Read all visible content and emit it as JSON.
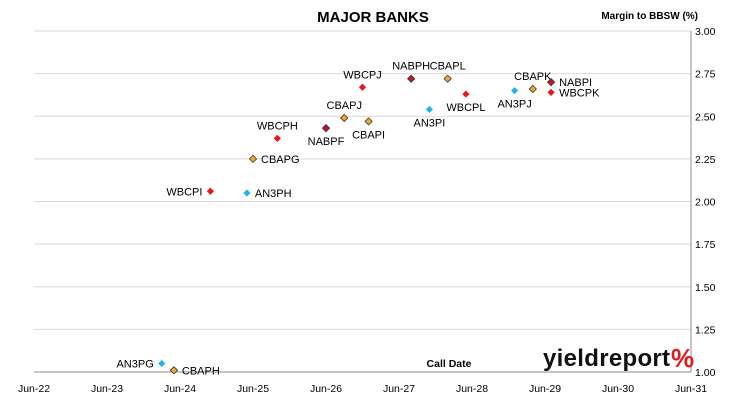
{
  "chart_data": {
    "type": "scatter",
    "title": "MAJOR BANKS",
    "ylabel": "Margin to BBSW (%)",
    "xlabel": "Call Date",
    "xlim": [
      "2022-06",
      "2031-06"
    ],
    "ylim": [
      1.0,
      3.0
    ],
    "y_ticks": [
      "1.00",
      "1.25",
      "1.50",
      "1.75",
      "2.00",
      "2.25",
      "2.50",
      "2.75",
      "3.00"
    ],
    "x_ticks": [
      "Jun-22",
      "Jun-23",
      "Jun-24",
      "Jun-25",
      "Jun-26",
      "Jun-27",
      "Jun-28",
      "Jun-29",
      "Jun-30",
      "Jun-31"
    ],
    "grid": "horizontal",
    "y_axis_side": "right",
    "colors": {
      "red": "#e31a1c",
      "orange": "#f0a830",
      "darkred": "#c0182a",
      "cyan": "#1fb5e8",
      "outline": "#333333"
    },
    "points": [
      {
        "label": "AN3PG",
        "date": "2024-03",
        "y": 1.05,
        "color": "cyan",
        "label_pos": "left"
      },
      {
        "label": "CBAPH",
        "date": "2024-05",
        "y": 1.01,
        "color": "orange",
        "label_pos": "right"
      },
      {
        "label": "WBCPI",
        "date": "2024-11",
        "y": 2.06,
        "color": "red",
        "label_pos": "left"
      },
      {
        "label": "AN3PH",
        "date": "2025-05",
        "y": 2.05,
        "color": "cyan",
        "label_pos": "right"
      },
      {
        "label": "CBAPG",
        "date": "2025-06",
        "y": 2.25,
        "color": "orange",
        "label_pos": "right"
      },
      {
        "label": "WBCPH",
        "date": "2025-10",
        "y": 2.37,
        "color": "red",
        "label_pos": "above"
      },
      {
        "label": "NABPF",
        "date": "2026-06",
        "y": 2.43,
        "color": "darkred",
        "label_pos": "below"
      },
      {
        "label": "CBAPJ",
        "date": "2026-09",
        "y": 2.49,
        "color": "orange",
        "label_pos": "above"
      },
      {
        "label": "WBCPJ",
        "date": "2026-12",
        "y": 2.67,
        "color": "red",
        "label_pos": "above"
      },
      {
        "label": "CBAPI",
        "date": "2027-01",
        "y": 2.47,
        "color": "orange",
        "label_pos": "below"
      },
      {
        "label": "NABPH",
        "date": "2027-08",
        "y": 2.72,
        "color": "darkred",
        "label_pos": "above"
      },
      {
        "label": "AN3PI",
        "date": "2027-11",
        "y": 2.54,
        "color": "cyan",
        "label_pos": "below"
      },
      {
        "label": "CBAPL",
        "date": "2028-02",
        "y": 2.72,
        "color": "orange",
        "label_pos": "above"
      },
      {
        "label": "WBCPL",
        "date": "2028-05",
        "y": 2.63,
        "color": "red",
        "label_pos": "below"
      },
      {
        "label": "AN3PJ",
        "date": "2029-01",
        "y": 2.65,
        "color": "cyan",
        "label_pos": "below"
      },
      {
        "label": "CBAPK",
        "date": "2029-04",
        "y": 2.66,
        "color": "orange",
        "label_pos": "above"
      },
      {
        "label": "NABPI",
        "date": "2029-07",
        "y": 2.7,
        "color": "darkred",
        "label_pos": "right"
      },
      {
        "label": "WBCPK",
        "date": "2029-07",
        "y": 2.64,
        "color": "red",
        "label_pos": "right"
      }
    ]
  },
  "logo": {
    "text": "yieldreport",
    "symbol": "%"
  }
}
